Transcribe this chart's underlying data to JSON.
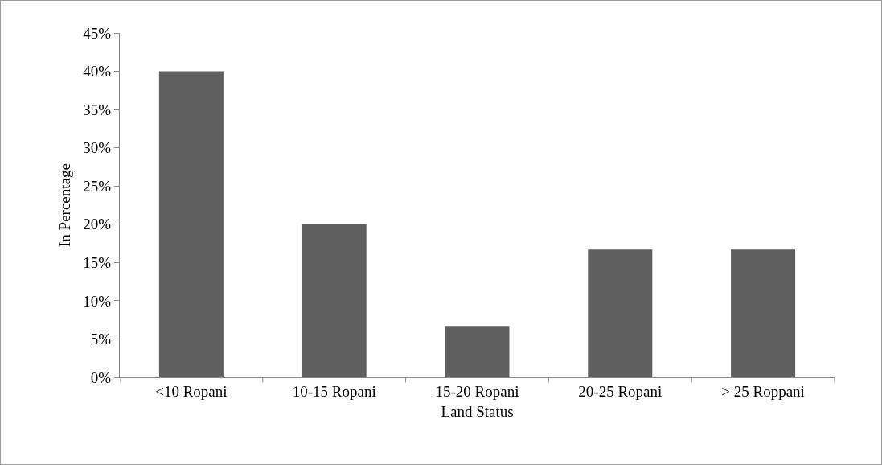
{
  "chart_data": {
    "type": "bar",
    "xlabel": "Land Status",
    "ylabel": "In Percentage",
    "categories": [
      "<10 Ropani",
      "10-15 Ropani",
      "15-20 Ropani",
      "20-25 Ropani",
      "> 25 Roppani"
    ],
    "values": [
      40,
      20,
      6.7,
      16.7,
      16.7
    ],
    "color": "#5f5f5f",
    "ylim": [
      0,
      45
    ],
    "yticks": [
      {
        "value": 0,
        "label": "0%"
      },
      {
        "value": 5,
        "label": "5%"
      },
      {
        "value": 10,
        "label": "10%"
      },
      {
        "value": 15,
        "label": "15%"
      },
      {
        "value": 20,
        "label": "20%"
      },
      {
        "value": 25,
        "label": "25%"
      },
      {
        "value": 30,
        "label": "30%"
      },
      {
        "value": 35,
        "label": "35%"
      },
      {
        "value": 40,
        "label": "40%"
      },
      {
        "value": 45,
        "label": "45%"
      }
    ],
    "grid": false
  }
}
